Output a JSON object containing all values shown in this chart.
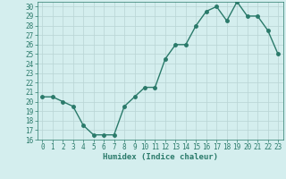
{
  "title": "",
  "xlabel": "Humidex (Indice chaleur)",
  "x": [
    0,
    1,
    2,
    3,
    4,
    5,
    6,
    7,
    8,
    9,
    10,
    11,
    12,
    13,
    14,
    15,
    16,
    17,
    18,
    19,
    20,
    21,
    22,
    23
  ],
  "y": [
    20.5,
    20.5,
    20.0,
    19.5,
    17.5,
    16.5,
    16.5,
    16.5,
    19.5,
    20.5,
    21.5,
    21.5,
    24.5,
    26.0,
    26.0,
    28.0,
    29.5,
    30.0,
    28.5,
    30.5,
    29.0,
    29.0,
    27.5,
    25.0
  ],
  "line_color": "#2a7a6a",
  "marker": "o",
  "marker_size": 2.5,
  "line_width": 1.0,
  "ylim": [
    16,
    30.5
  ],
  "yticks": [
    16,
    17,
    18,
    19,
    20,
    21,
    22,
    23,
    24,
    25,
    26,
    27,
    28,
    29,
    30
  ],
  "xlim": [
    -0.5,
    23.5
  ],
  "xticks": [
    0,
    1,
    2,
    3,
    4,
    5,
    6,
    7,
    8,
    9,
    10,
    11,
    12,
    13,
    14,
    15,
    16,
    17,
    18,
    19,
    20,
    21,
    22,
    23
  ],
  "bg_color": "#d4eeee",
  "grid_color": "#b8d4d4",
  "tick_fontsize": 5.5,
  "label_fontsize": 6.5
}
